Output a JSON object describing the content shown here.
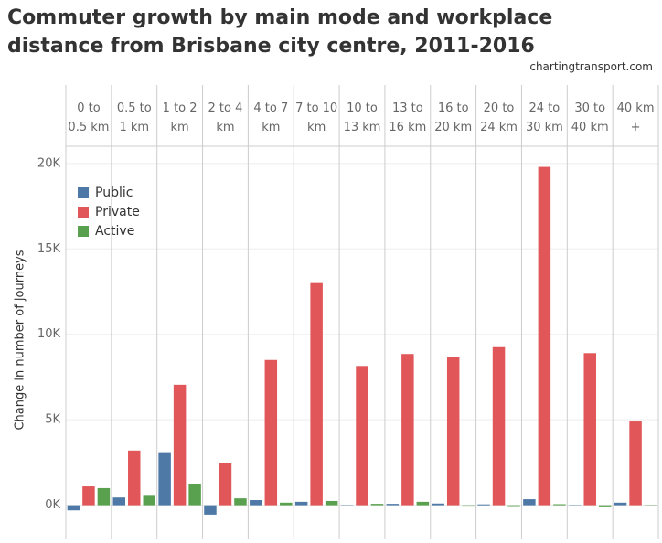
{
  "chart_data": {
    "type": "bar",
    "title": "Commuter growth by main mode and workplace distance from Brisbane city centre, 2011-2016",
    "source": "chartingtransport.com",
    "y_label": "Change in number of journeys",
    "categories": [
      "0 to\n0.5 km",
      "0.5 to\n1 km",
      "1 to 2\nkm",
      "2 to 4\nkm",
      "4 to 7\nkm",
      "7 to 10\nkm",
      "10 to\n13 km",
      "13 to\n16 km",
      "16 to\n20 km",
      "20 to\n24 km",
      "24 to\n30 km",
      "30 to\n40 km",
      "40 km\n+"
    ],
    "series": [
      {
        "name": "Public",
        "color": "#4e79a7",
        "values": [
          -300,
          450,
          3050,
          -550,
          300,
          200,
          -50,
          80,
          100,
          50,
          350,
          -50,
          150
        ]
      },
      {
        "name": "Private",
        "color": "#e15759",
        "values": [
          1100,
          3200,
          7050,
          2450,
          8500,
          13000,
          8150,
          8850,
          8650,
          9250,
          19800,
          8900,
          4900
        ]
      },
      {
        "name": "Active",
        "color": "#59a14f",
        "values": [
          1000,
          550,
          1250,
          400,
          150,
          250,
          80,
          200,
          -80,
          -100,
          60,
          -120,
          -30
        ]
      }
    ],
    "ylim": [
      -2000,
      20900
    ],
    "yticks": [
      {
        "value": 0,
        "label": "0K"
      },
      {
        "value": 5000,
        "label": "5K"
      },
      {
        "value": 10000,
        "label": "10K"
      },
      {
        "value": 15000,
        "label": "15K"
      },
      {
        "value": 20000,
        "label": "20K"
      }
    ],
    "grid": true
  }
}
